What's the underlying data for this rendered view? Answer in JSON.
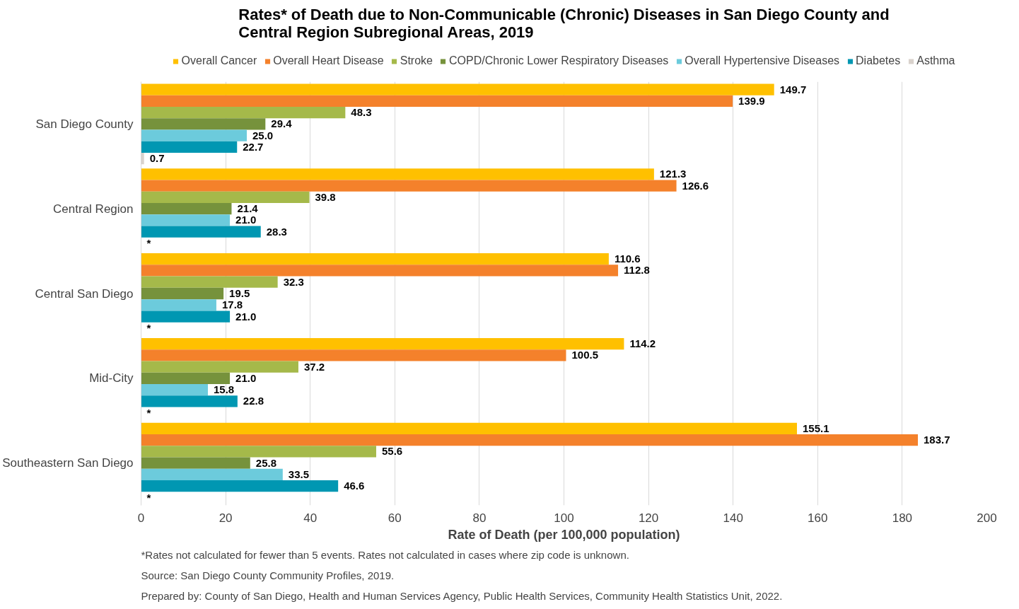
{
  "chart_data": {
    "type": "bar",
    "orientation": "horizontal",
    "title": "Rates* of Death due to Non-Communicable (Chronic) Diseases in San Diego County and Central Region Subregional Areas, 2019",
    "xlabel": "Rate of Death (per 100,000 population)",
    "categories": [
      "San Diego County",
      "Central Region",
      "Central San Diego",
      "Mid-City",
      "Southeastern San Diego"
    ],
    "series": [
      {
        "name": "Overall Cancer",
        "color": "#ffc000",
        "values": [
          149.7,
          121.3,
          110.6,
          114.2,
          155.1
        ],
        "value_labels": [
          "149.7",
          "121.3",
          "110.6",
          "114.2",
          "155.1"
        ]
      },
      {
        "name": "Overall Heart Disease",
        "color": "#f4812b",
        "values": [
          139.9,
          126.6,
          112.8,
          100.5,
          183.7
        ],
        "value_labels": [
          "139.9",
          "126.6",
          "112.8",
          "100.5",
          "183.7"
        ]
      },
      {
        "name": "Stroke",
        "color": "#a5b94a",
        "values": [
          48.3,
          39.8,
          32.3,
          37.2,
          55.6
        ],
        "value_labels": [
          "48.3",
          "39.8",
          "32.3",
          "37.2",
          "55.6"
        ]
      },
      {
        "name": "COPD/Chronic Lower Respiratory Diseases",
        "color": "#76923c",
        "values": [
          29.4,
          21.4,
          19.5,
          21.0,
          25.8
        ],
        "value_labels": [
          "29.4",
          "21.4",
          "19.5",
          "21.0",
          "25.8"
        ]
      },
      {
        "name": "Overall Hypertensive Diseases",
        "color": "#6ccbdc",
        "values": [
          25.0,
          21.0,
          17.8,
          15.8,
          33.5
        ],
        "value_labels": [
          "25.0",
          "21.0",
          "17.8",
          "15.8",
          "33.5"
        ]
      },
      {
        "name": "Diabetes",
        "color": "#0097b2",
        "values": [
          22.7,
          28.3,
          21.0,
          22.8,
          46.6
        ],
        "value_labels": [
          "22.7",
          "28.3",
          "21.0",
          "22.8",
          "46.6"
        ]
      },
      {
        "name": "Asthma",
        "color": "#d9d2cc",
        "values": [
          0.7,
          null,
          null,
          null,
          null
        ],
        "value_labels": [
          "0.7",
          "*",
          "*",
          "*",
          "*"
        ]
      }
    ],
    "xlim": [
      0,
      200
    ],
    "xticks": [
      0,
      20,
      40,
      60,
      80,
      100,
      120,
      140,
      160,
      180,
      200
    ],
    "grid": "x",
    "legend": "top",
    "annotations": [
      "*Rates not calculated for fewer than 5 events. Rates not calculated in cases where zip code is unknown.",
      "Source: San Diego County Community Profiles, 2019.",
      "Prepared by: County of San Diego, Health and Human Services Agency, Public Health Services, Community Health Statistics Unit, 2022."
    ]
  }
}
